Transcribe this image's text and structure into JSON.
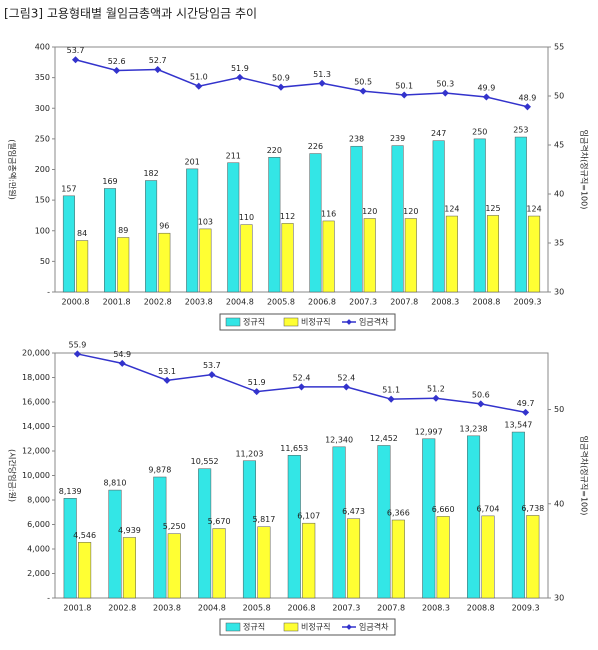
{
  "title": "[그림3] 고용형태별 월임금총액과 시간당임금 추이",
  "chart_data": [
    {
      "type": "bar",
      "ylabel": "(월임금총액:만원)",
      "y2label": "임금격차(정규직=100)",
      "categories": [
        "2000.8",
        "2001.8",
        "2002.8",
        "2003.8",
        "2004.8",
        "2005.8",
        "2006.8",
        "2007.3",
        "2007.8",
        "2008.3",
        "2008.8",
        "2009.3"
      ],
      "series": [
        {
          "name": "정규직",
          "color": "#33e6e6",
          "values": [
            157,
            169,
            182,
            201,
            211,
            220,
            226,
            238,
            239,
            247,
            250,
            253
          ]
        },
        {
          "name": "비정규직",
          "color": "#ffff33",
          "values": [
            84,
            89,
            96,
            103,
            110,
            112,
            116,
            120,
            120,
            124,
            125,
            124
          ]
        },
        {
          "name": "임금격차",
          "color": "#3333cc",
          "axis": "y2",
          "values": [
            53.7,
            52.6,
            52.7,
            51.0,
            51.9,
            50.9,
            51.3,
            50.5,
            50.1,
            50.3,
            49.9,
            48.9
          ],
          "value_labels": [
            "53.7",
            "52.6",
            "52.7",
            "51.0",
            "51.9",
            "50.9",
            "51.3",
            "50.5",
            "50.1",
            "50.3",
            "49.9",
            "48.9"
          ]
        }
      ],
      "ylim": [
        0,
        400
      ],
      "yticks": [
        {
          "value": 0,
          "label": "-"
        },
        50,
        100,
        150,
        200,
        250,
        300,
        350,
        400
      ],
      "y2lim": [
        30,
        55
      ],
      "y2ticks": [
        30,
        35,
        40,
        45,
        50,
        55
      ]
    },
    {
      "type": "bar",
      "ylabel": "(시간당임금:원)",
      "y2label": "임금격차(정규직=100)",
      "categories": [
        "2001.8",
        "2002.8",
        "2003.8",
        "2004.8",
        "2005.8",
        "2006.8",
        "2007.3",
        "2007.8",
        "2008.3",
        "2008.8",
        "2009.3"
      ],
      "series": [
        {
          "name": "정규직",
          "color": "#33e6e6",
          "values": [
            8139,
            8810,
            9878,
            10552,
            11203,
            11653,
            12340,
            12452,
            12997,
            13238,
            13547
          ],
          "value_labels": [
            "8,139",
            "8,810",
            "9,878",
            "10,552",
            "11,203",
            "11,653",
            "12,340",
            "12,452",
            "12,997",
            "13,238",
            "13,547"
          ]
        },
        {
          "name": "비정규직",
          "color": "#ffff33",
          "values": [
            4546,
            4939,
            5250,
            5670,
            5817,
            6107,
            6473,
            6366,
            6660,
            6704,
            6738
          ],
          "value_labels": [
            "4,546",
            "4,939",
            "5,250",
            "5,670",
            "5,817",
            "6,107",
            "6,473",
            "6,366",
            "6,660",
            "6,704",
            "6,738"
          ]
        },
        {
          "name": "임금격차",
          "color": "#3333cc",
          "axis": "y2",
          "values": [
            55.9,
            54.9,
            53.1,
            53.7,
            51.9,
            52.4,
            52.4,
            51.1,
            51.2,
            50.6,
            49.7
          ]
        }
      ],
      "ylim": [
        0,
        20000
      ],
      "yticks": [
        {
          "value": 0,
          "label": "-"
        },
        {
          "value": 2000,
          "label": "2,000"
        },
        {
          "value": 4000,
          "label": "4,000"
        },
        {
          "value": 6000,
          "label": "6,000"
        },
        {
          "value": 8000,
          "label": "8,000"
        },
        {
          "value": 10000,
          "label": "10,000"
        },
        {
          "value": 12000,
          "label": "12,000"
        },
        {
          "value": 14000,
          "label": "14,000"
        },
        {
          "value": 16000,
          "label": "16,000"
        },
        {
          "value": 18000,
          "label": "18,000"
        },
        {
          "value": 20000,
          "label": "20,000"
        }
      ],
      "y2lim": [
        30,
        56
      ],
      "y2ticks": [
        30,
        40,
        50
      ]
    }
  ]
}
